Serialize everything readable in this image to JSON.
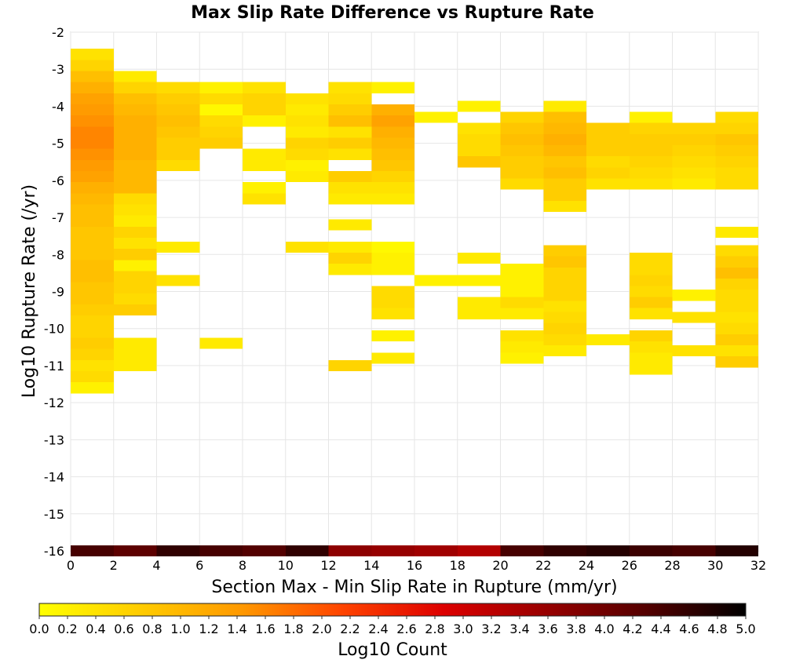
{
  "chart_data": {
    "type": "heatmap",
    "title": "Max Slip Rate Difference vs Rupture Rate",
    "xlabel": "Section Max - Min Slip Rate in Rupture (mm/yr)",
    "ylabel": "Log10 Rupture Rate (/yr)",
    "xlim": [
      0,
      32
    ],
    "ylim": [
      -16,
      -2
    ],
    "x_ticks": [
      "0",
      "2",
      "4",
      "6",
      "8",
      "10",
      "12",
      "14",
      "16",
      "18",
      "20",
      "22",
      "24",
      "26",
      "28",
      "30",
      "32"
    ],
    "y_ticks": [
      "-2",
      "-3",
      "-4",
      "-5",
      "-6",
      "-7",
      "-8",
      "-9",
      "-10",
      "-11",
      "-12",
      "-13",
      "-14",
      "-15",
      "-16"
    ],
    "x_bin_width": 2,
    "y_bin_width": 0.3,
    "grid": true,
    "colorbar": {
      "label": "Log10 Count",
      "min": 0.0,
      "max": 5.0,
      "ticks": [
        "0.0",
        "0.2",
        "0.4",
        "0.6",
        "0.8",
        "1.0",
        "1.2",
        "1.4",
        "1.6",
        "1.8",
        "2.0",
        "2.2",
        "2.4",
        "2.6",
        "2.8",
        "3.0",
        "3.2",
        "3.4",
        "3.6",
        "3.8",
        "4.0",
        "4.2",
        "4.4",
        "4.6",
        "4.8",
        "5.0"
      ],
      "colors": [
        "#ffff00",
        "#ffcc00",
        "#ff9900",
        "#ff4400",
        "#dd0000",
        "#990000",
        "#550000",
        "#000000"
      ]
    },
    "series": [
      {
        "x": 1,
        "cells": [
          [
            -2.6,
            0.4
          ],
          [
            -2.9,
            0.6
          ],
          [
            -3.2,
            0.9
          ],
          [
            -3.5,
            1.1
          ],
          [
            -3.8,
            1.3
          ],
          [
            -4.1,
            1.4
          ],
          [
            -4.4,
            1.5
          ],
          [
            -4.7,
            1.6
          ],
          [
            -5.0,
            1.6
          ],
          [
            -5.3,
            1.5
          ],
          [
            -5.6,
            1.4
          ],
          [
            -5.9,
            1.3
          ],
          [
            -6.2,
            1.1
          ],
          [
            -6.5,
            1.0
          ],
          [
            -6.8,
            0.9
          ],
          [
            -7.1,
            0.9
          ],
          [
            -7.4,
            0.8
          ],
          [
            -7.7,
            0.8
          ],
          [
            -8.0,
            0.8
          ],
          [
            -8.3,
            0.9
          ],
          [
            -8.6,
            0.9
          ],
          [
            -8.9,
            0.8
          ],
          [
            -9.2,
            0.8
          ],
          [
            -9.5,
            0.7
          ],
          [
            -9.8,
            0.6
          ],
          [
            -10.1,
            0.6
          ],
          [
            -10.4,
            0.7
          ],
          [
            -10.7,
            0.6
          ],
          [
            -11.0,
            0.4
          ],
          [
            -11.3,
            0.5
          ],
          [
            -11.6,
            0.2
          ],
          [
            -16.0,
            4.4
          ]
        ]
      },
      {
        "x": 3,
        "cells": [
          [
            -3.2,
            0.3
          ],
          [
            -3.5,
            0.6
          ],
          [
            -3.8,
            0.9
          ],
          [
            -4.1,
            1.0
          ],
          [
            -4.4,
            1.1
          ],
          [
            -4.7,
            1.1
          ],
          [
            -5.0,
            1.1
          ],
          [
            -5.3,
            1.1
          ],
          [
            -5.6,
            1.0
          ],
          [
            -5.9,
            1.0
          ],
          [
            -6.2,
            1.0
          ],
          [
            -6.5,
            0.5
          ],
          [
            -6.8,
            0.4
          ],
          [
            -7.1,
            0.3
          ],
          [
            -7.4,
            0.6
          ],
          [
            -7.7,
            0.4
          ],
          [
            -8.0,
            0.7
          ],
          [
            -8.3,
            0.2
          ],
          [
            -8.6,
            0.6
          ],
          [
            -8.9,
            0.6
          ],
          [
            -9.2,
            0.5
          ],
          [
            -9.5,
            0.7
          ],
          [
            -10.4,
            0.3
          ],
          [
            -10.7,
            0.3
          ],
          [
            -11.0,
            0.3
          ],
          [
            -16.0,
            4.2
          ]
        ]
      },
      {
        "x": 5,
        "cells": [
          [
            -3.5,
            0.5
          ],
          [
            -3.8,
            0.7
          ],
          [
            -4.1,
            0.8
          ],
          [
            -4.4,
            0.9
          ],
          [
            -4.7,
            0.8
          ],
          [
            -5.0,
            0.7
          ],
          [
            -5.3,
            0.7
          ],
          [
            -5.6,
            0.5
          ],
          [
            -7.8,
            0.3
          ],
          [
            -8.7,
            0.4
          ],
          [
            -16.0,
            4.6
          ]
        ]
      },
      {
        "x": 7,
        "cells": [
          [
            -3.5,
            0.2
          ],
          [
            -3.8,
            0.5
          ],
          [
            -4.1,
            0.1
          ],
          [
            -4.4,
            0.5
          ],
          [
            -4.7,
            0.6
          ],
          [
            -5.0,
            0.7
          ],
          [
            -10.4,
            0.3
          ],
          [
            -16.0,
            4.4
          ]
        ]
      },
      {
        "x": 9,
        "cells": [
          [
            -3.5,
            0.4
          ],
          [
            -3.8,
            0.6
          ],
          [
            -4.1,
            0.6
          ],
          [
            -4.4,
            0.2
          ],
          [
            -5.3,
            0.3
          ],
          [
            -5.6,
            0.3
          ],
          [
            -6.2,
            0.2
          ],
          [
            -6.5,
            0.4
          ],
          [
            -16.0,
            4.3
          ]
        ]
      },
      {
        "x": 11,
        "cells": [
          [
            -3.8,
            0.4
          ],
          [
            -4.1,
            0.3
          ],
          [
            -4.4,
            0.4
          ],
          [
            -4.7,
            0.3
          ],
          [
            -5.0,
            0.6
          ],
          [
            -5.3,
            0.5
          ],
          [
            -5.6,
            0.2
          ],
          [
            -5.9,
            0.3
          ],
          [
            -7.8,
            0.4
          ],
          [
            -16.0,
            4.6
          ]
        ]
      },
      {
        "x": 13,
        "cells": [
          [
            -3.5,
            0.4
          ],
          [
            -3.8,
            0.5
          ],
          [
            -4.1,
            0.7
          ],
          [
            -4.4,
            0.9
          ],
          [
            -4.7,
            0.4
          ],
          [
            -5.0,
            0.7
          ],
          [
            -5.3,
            0.4
          ],
          [
            -5.9,
            0.7
          ],
          [
            -6.2,
            0.4
          ],
          [
            -6.5,
            0.3
          ],
          [
            -7.2,
            0.3
          ],
          [
            -7.8,
            0.3
          ],
          [
            -8.1,
            0.6
          ],
          [
            -8.4,
            0.3
          ],
          [
            -11.0,
            0.6
          ],
          [
            -16.0,
            3.7
          ]
        ]
      },
      {
        "x": 15,
        "cells": [
          [
            -3.5,
            0.2
          ],
          [
            -4.1,
            1.1
          ],
          [
            -4.4,
            1.3
          ],
          [
            -4.7,
            1.1
          ],
          [
            -5.0,
            1.0
          ],
          [
            -5.3,
            0.9
          ],
          [
            -5.6,
            0.8
          ],
          [
            -5.9,
            0.6
          ],
          [
            -6.2,
            0.4
          ],
          [
            -6.5,
            0.3
          ],
          [
            -7.8,
            0.1
          ],
          [
            -8.1,
            0.2
          ],
          [
            -8.4,
            0.2
          ],
          [
            -9.0,
            0.5
          ],
          [
            -9.3,
            0.5
          ],
          [
            -9.6,
            0.4
          ],
          [
            -10.2,
            0.2
          ],
          [
            -10.8,
            0.3
          ],
          [
            -16.0,
            3.6
          ]
        ]
      },
      {
        "x": 17,
        "cells": [
          [
            -4.3,
            0.2
          ],
          [
            -8.7,
            0.2
          ],
          [
            -16.0,
            3.5
          ]
        ]
      },
      {
        "x": 19,
        "cells": [
          [
            -4.0,
            0.2
          ],
          [
            -4.6,
            0.4
          ],
          [
            -4.9,
            0.5
          ],
          [
            -5.2,
            0.5
          ],
          [
            -5.5,
            0.8
          ],
          [
            -8.1,
            0.3
          ],
          [
            -8.7,
            0.2
          ],
          [
            -9.3,
            0.3
          ],
          [
            -9.6,
            0.3
          ],
          [
            -16.0,
            3.3
          ]
        ]
      },
      {
        "x": 21,
        "cells": [
          [
            -4.3,
            0.6
          ],
          [
            -4.6,
            0.8
          ],
          [
            -4.9,
            0.9
          ],
          [
            -5.2,
            0.8
          ],
          [
            -5.5,
            0.7
          ],
          [
            -5.8,
            0.7
          ],
          [
            -6.1,
            0.5
          ],
          [
            -8.4,
            0.2
          ],
          [
            -8.7,
            0.2
          ],
          [
            -9.0,
            0.2
          ],
          [
            -9.3,
            0.5
          ],
          [
            -9.6,
            0.3
          ],
          [
            -10.2,
            0.4
          ],
          [
            -10.5,
            0.3
          ],
          [
            -10.8,
            0.2
          ],
          [
            -16.0,
            4.4
          ]
        ]
      },
      {
        "x": 23,
        "cells": [
          [
            -4.0,
            0.3
          ],
          [
            -4.3,
            0.9
          ],
          [
            -4.6,
            1.0
          ],
          [
            -4.9,
            1.1
          ],
          [
            -5.2,
            1.0
          ],
          [
            -5.5,
            0.8
          ],
          [
            -5.8,
            0.9
          ],
          [
            -6.1,
            0.7
          ],
          [
            -6.4,
            0.7
          ],
          [
            -6.7,
            0.4
          ],
          [
            -7.9,
            0.7
          ],
          [
            -8.2,
            0.8
          ],
          [
            -8.5,
            0.6
          ],
          [
            -8.8,
            0.6
          ],
          [
            -9.1,
            0.6
          ],
          [
            -9.4,
            0.4
          ],
          [
            -9.7,
            0.5
          ],
          [
            -10.0,
            0.6
          ],
          [
            -10.3,
            0.5
          ],
          [
            -10.6,
            0.3
          ],
          [
            -16.0,
            4.6
          ]
        ]
      },
      {
        "x": 25,
        "cells": [
          [
            -4.6,
            0.7
          ],
          [
            -4.9,
            0.7
          ],
          [
            -5.2,
            0.7
          ],
          [
            -5.5,
            0.5
          ],
          [
            -5.8,
            0.6
          ],
          [
            -6.1,
            0.4
          ],
          [
            -10.3,
            0.3
          ],
          [
            -16.0,
            4.7
          ]
        ]
      },
      {
        "x": 27,
        "cells": [
          [
            -4.3,
            0.2
          ],
          [
            -4.6,
            0.6
          ],
          [
            -4.9,
            0.7
          ],
          [
            -5.2,
            0.7
          ],
          [
            -5.5,
            0.6
          ],
          [
            -5.8,
            0.5
          ],
          [
            -6.1,
            0.4
          ],
          [
            -8.1,
            0.5
          ],
          [
            -8.4,
            0.5
          ],
          [
            -8.7,
            0.6
          ],
          [
            -9.0,
            0.5
          ],
          [
            -9.3,
            0.7
          ],
          [
            -9.6,
            0.4
          ],
          [
            -10.2,
            0.6
          ],
          [
            -10.5,
            0.4
          ],
          [
            -10.8,
            0.3
          ],
          [
            -11.1,
            0.3
          ],
          [
            -16.0,
            4.5
          ]
        ]
      },
      {
        "x": 29,
        "cells": [
          [
            -4.6,
            0.6
          ],
          [
            -4.9,
            0.7
          ],
          [
            -5.2,
            0.6
          ],
          [
            -5.5,
            0.5
          ],
          [
            -5.8,
            0.4
          ],
          [
            -6.1,
            0.3
          ],
          [
            -9.1,
            0.2
          ],
          [
            -9.7,
            0.4
          ],
          [
            -10.6,
            0.4
          ],
          [
            -16.0,
            4.4
          ]
        ]
      },
      {
        "x": 31,
        "cells": [
          [
            -4.3,
            0.5
          ],
          [
            -4.6,
            0.6
          ],
          [
            -4.9,
            0.8
          ],
          [
            -5.2,
            0.7
          ],
          [
            -5.5,
            0.6
          ],
          [
            -5.8,
            0.5
          ],
          [
            -6.1,
            0.5
          ],
          [
            -7.4,
            0.3
          ],
          [
            -7.9,
            0.5
          ],
          [
            -8.2,
            0.7
          ],
          [
            -8.5,
            0.9
          ],
          [
            -8.8,
            0.6
          ],
          [
            -9.1,
            0.5
          ],
          [
            -9.4,
            0.5
          ],
          [
            -9.7,
            0.4
          ],
          [
            -10.0,
            0.5
          ],
          [
            -10.3,
            0.7
          ],
          [
            -10.6,
            0.4
          ],
          [
            -10.9,
            0.7
          ],
          [
            -16.0,
            4.7
          ]
        ]
      }
    ]
  }
}
